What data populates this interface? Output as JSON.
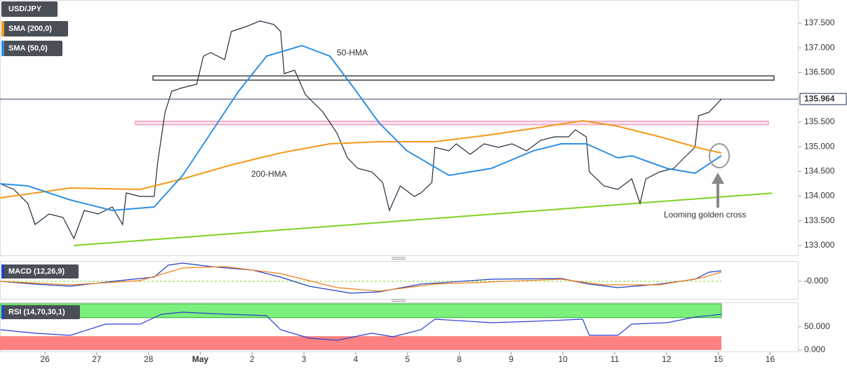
{
  "chart_data": [
    {
      "type": "line",
      "title": "USD/JPY",
      "series": [
        {
          "name": "USD/JPY",
          "color": "#1f2d3d",
          "x": [
            -0.86,
            -0.6,
            -0.33,
            -0.19,
            0.08,
            0.35,
            0.56,
            0.76,
            1.03,
            1.3,
            1.5,
            1.57,
            1.84,
            2.11,
            2.18,
            2.32,
            2.45,
            2.66,
            2.93,
            3.06,
            3.2,
            3.47,
            3.6,
            3.88,
            4.15,
            4.42,
            4.55,
            4.62,
            4.82,
            5.03,
            5.37,
            5.64,
            5.84,
            6.04,
            6.31,
            6.52,
            6.65,
            6.86,
            7.13,
            7.26,
            7.47,
            7.53,
            7.8,
            7.94,
            8.21,
            8.48,
            8.75,
            9.02,
            9.3,
            9.57,
            9.84,
            10.11,
            10.24,
            10.45,
            10.51,
            10.79,
            11.06,
            11.33,
            11.49,
            11.6,
            11.87,
            12.14,
            12.34,
            12.55,
            12.62,
            12.82,
            13.06
          ],
          "values": [
            134.249,
            134.135,
            133.852,
            133.426,
            133.639,
            133.568,
            133.142,
            133.71,
            133.639,
            133.781,
            133.426,
            134.064,
            133.993,
            133.993,
            134.703,
            135.697,
            136.123,
            136.194,
            136.265,
            136.833,
            136.904,
            136.762,
            137.33,
            137.429,
            137.543,
            137.472,
            137.33,
            136.478,
            136.549,
            136.052,
            135.697,
            135.271,
            134.774,
            134.561,
            134.49,
            134.277,
            133.71,
            134.206,
            133.993,
            134.064,
            134.277,
            134.987,
            134.916,
            135.058,
            134.845,
            135.058,
            134.987,
            135.058,
            134.916,
            135.129,
            135.2,
            135.2,
            135.342,
            135.2,
            134.49,
            134.206,
            134.135,
            134.348,
            133.852,
            134.348,
            134.49,
            134.561,
            134.774,
            134.987,
            135.626,
            135.697,
            135.964
          ]
        },
        {
          "name": "SMA (200,0)",
          "color": "#f39a1c",
          "x": [
            -0.86,
            0.49,
            1.84,
            2.66,
            3.6,
            4.55,
            5.5,
            6.45,
            7.53,
            8.62,
            9.7,
            10.38,
            11.06,
            11.87,
            12.68,
            13.06
          ],
          "values": [
            133.965,
            134.164,
            134.135,
            134.348,
            134.632,
            134.874,
            135.058,
            135.101,
            135.101,
            135.243,
            135.413,
            135.527,
            135.413,
            135.2,
            134.959,
            134.874
          ]
        },
        {
          "name": "SMA (50,0)",
          "color": "#2f8fe3",
          "x": [
            -0.86,
            -0.33,
            0.49,
            1.3,
            2.11,
            2.66,
            3.2,
            3.74,
            4.28,
            4.96,
            5.5,
            5.91,
            6.45,
            6.99,
            7.8,
            8.62,
            9.43,
            9.97,
            10.45,
            11.06,
            11.33,
            12.01,
            12.55,
            13.06
          ],
          "values": [
            134.249,
            134.206,
            133.922,
            133.71,
            133.781,
            134.419,
            135.271,
            136.123,
            136.833,
            137.046,
            136.833,
            136.265,
            135.484,
            134.916,
            134.419,
            134.561,
            134.916,
            135.058,
            135.058,
            134.774,
            134.817,
            134.561,
            134.462,
            134.817
          ]
        }
      ],
      "levels": [
        136.39,
        135.48
      ],
      "trendline": {
        "x": [
          0.56,
          14.04
        ],
        "values": [
          133.0,
          134.06
        ]
      },
      "last_price": 135.964,
      "annotations": [
        "50-HMA",
        "200-HMA",
        "Looming golden cross"
      ],
      "xlim": [
        -0.867,
        14.55
      ],
      "ylim": [
        132.787,
        137.968
      ],
      "yticks": [
        {
          "value": 133,
          "label": "133.000"
        },
        {
          "value": 133.5,
          "label": "133.500"
        },
        {
          "value": 134,
          "label": "134.000"
        },
        {
          "value": 134.5,
          "label": "134.500"
        },
        {
          "value": 135,
          "label": "135.000"
        },
        {
          "value": 135.5,
          "label": "135.500"
        },
        {
          "value": 136,
          "label": "136.000"
        },
        {
          "value": 136.5,
          "label": "136.500"
        },
        {
          "value": 137,
          "label": "137.000"
        },
        {
          "value": 137.5,
          "label": "137.500"
        }
      ]
    },
    {
      "type": "line",
      "title": "MACD (12,26,9)",
      "series": [
        {
          "color": "#1f3fbf",
          "x": [
            -0.86,
            -0.19,
            0.49,
            1.44,
            2.11,
            2.38,
            2.66,
            3.2,
            4.01,
            4.55,
            5.1,
            5.91,
            6.45,
            7.26,
            8.62,
            9.97,
            10.51,
            11.06,
            11.87,
            12.55,
            12.82,
            13.06
          ],
          "values": [
            0,
            -0.08,
            -0.14,
            0.02,
            0.12,
            0.46,
            0.52,
            0.42,
            0.32,
            0.12,
            -0.14,
            -0.34,
            -0.3,
            -0.08,
            0.06,
            0.08,
            -0.08,
            -0.18,
            -0.08,
            0.06,
            0.26,
            0.3
          ]
        },
        {
          "color": "#f07d1a",
          "x": [
            -0.86,
            0.49,
            1.84,
            2.66,
            3.47,
            4.55,
            5.64,
            6.45,
            7.53,
            9.97,
            10.79,
            11.87,
            12.68,
            13.06
          ],
          "values": [
            0,
            -0.1,
            0.02,
            0.38,
            0.42,
            0.22,
            -0.18,
            -0.28,
            -0.08,
            0.06,
            -0.1,
            -0.1,
            0.1,
            0.26
          ]
        }
      ],
      "xlim": [
        -0.867,
        14.55
      ],
      "ylim": [
        -0.5,
        0.5
      ],
      "yticks": [
        {
          "value": 0,
          "label": "-0.000"
        }
      ]
    },
    {
      "type": "line",
      "title": "RSI (14,70,30,1)",
      "series": [
        {
          "color": "#2a3fd0",
          "x": [
            -0.86,
            -0.19,
            0.49,
            1.17,
            1.84,
            2.25,
            2.66,
            3.2,
            4.28,
            4.55,
            5.1,
            5.64,
            6.31,
            6.72,
            7.26,
            7.53,
            8.62,
            9.43,
            10.38,
            10.51,
            11.06,
            11.33,
            12.01,
            12.55,
            13.06
          ],
          "values": [
            43.9,
            36.4,
            31.8,
            56.1,
            56.1,
            77.3,
            81.8,
            78.8,
            74.2,
            43.9,
            25.8,
            21.2,
            36.4,
            28.8,
            43.9,
            66.7,
            59.1,
            62.1,
            66.7,
            31.8,
            31.8,
            56.1,
            59.1,
            71.2,
            77.3
          ]
        }
      ],
      "bands": [
        70,
        30
      ],
      "xlim": [
        -0.867,
        14.55
      ],
      "ylim": [
        0,
        100
      ],
      "yticks": [
        {
          "value": 0,
          "label": "0.000"
        },
        {
          "value": 50,
          "label": "50.000"
        }
      ],
      "xticks": [
        {
          "value": 0,
          "label": "26"
        },
        {
          "value": 1,
          "label": "27"
        },
        {
          "value": 2,
          "label": "28"
        },
        {
          "value": 3,
          "label": "May"
        },
        {
          "value": 4,
          "label": "2"
        },
        {
          "value": 5,
          "label": "3"
        },
        {
          "value": 6,
          "label": "4"
        },
        {
          "value": 7,
          "label": "5"
        },
        {
          "value": 8,
          "label": "8"
        },
        {
          "value": 9,
          "label": "9"
        },
        {
          "value": 10,
          "label": "10"
        },
        {
          "value": 11,
          "label": "11"
        },
        {
          "value": 12,
          "label": "12"
        },
        {
          "value": 13,
          "label": "15"
        },
        {
          "value": 14,
          "label": "16"
        }
      ]
    }
  ]
}
